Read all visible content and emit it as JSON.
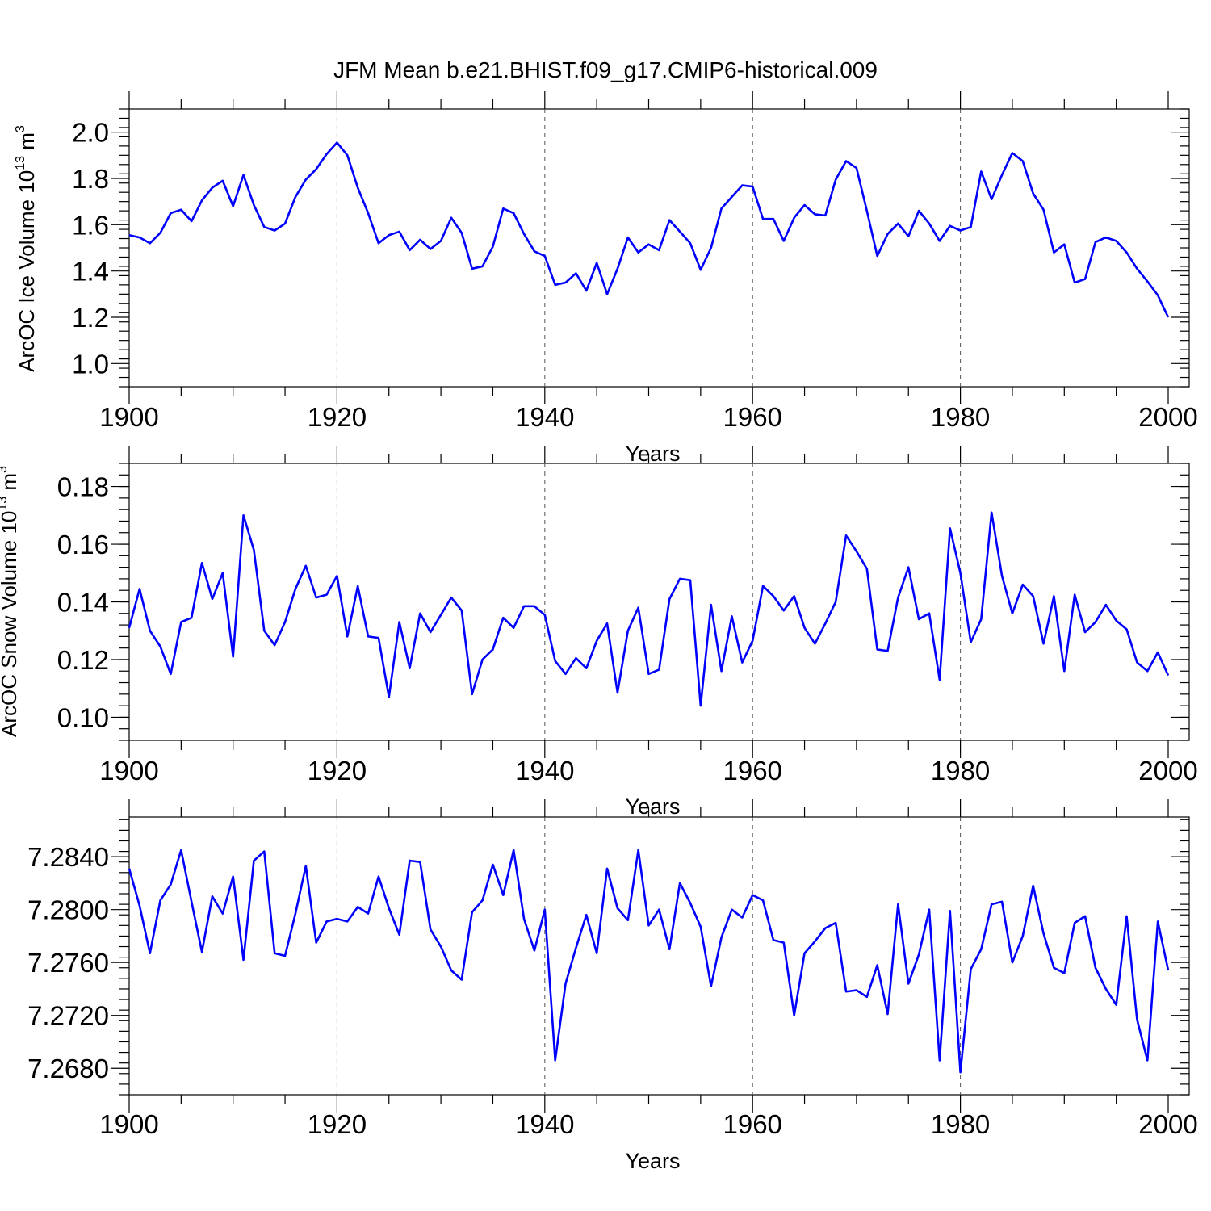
{
  "title": "JFM Mean b.e21.BHIST.f09_g17.CMIP6-historical.009",
  "colors": {
    "line": "#0000ff",
    "grid": "#555555",
    "axis": "#000000"
  },
  "chart_data": [
    {
      "type": "line",
      "name": "ice-volume",
      "ylabel_main": "ArcOC Ice Volume 10",
      "ylabel_exp": "13",
      "ylabel_unit": " m",
      "ylabel_unit_exp": "3",
      "xlabel": "Years",
      "xlim": [
        1900,
        2000
      ],
      "ylim": [
        0.9,
        2.1
      ],
      "xticks": [
        1900,
        1920,
        1940,
        1960,
        1980,
        2000
      ],
      "xtick_labels": [
        "1900",
        "1920",
        "1940",
        "1960",
        "1980",
        "2000"
      ],
      "yticks": [
        1.0,
        1.2,
        1.4,
        1.6,
        1.8,
        2.0
      ],
      "ytick_labels": [
        "1.0",
        "1.2",
        "1.4",
        "1.6",
        "1.8",
        "2.0"
      ],
      "yminor_step": 0.04,
      "x_start": 1900,
      "values": [
        1.555,
        1.545,
        1.52,
        1.565,
        1.65,
        1.665,
        1.615,
        1.705,
        1.76,
        1.79,
        1.68,
        1.815,
        1.685,
        1.59,
        1.575,
        1.605,
        1.72,
        1.795,
        1.84,
        1.905,
        1.955,
        1.9,
        1.76,
        1.65,
        1.52,
        1.555,
        1.57,
        1.49,
        1.535,
        1.495,
        1.53,
        1.63,
        1.565,
        1.41,
        1.42,
        1.505,
        1.67,
        1.65,
        1.56,
        1.485,
        1.465,
        1.34,
        1.35,
        1.39,
        1.315,
        1.435,
        1.3,
        1.41,
        1.545,
        1.48,
        1.515,
        1.49,
        1.62,
        1.57,
        1.52,
        1.405,
        1.5,
        1.67,
        1.72,
        1.77,
        1.765,
        1.625,
        1.625,
        1.53,
        1.63,
        1.685,
        1.645,
        1.64,
        1.795,
        1.875,
        1.845,
        1.66,
        1.465,
        1.56,
        1.605,
        1.55,
        1.66,
        1.605,
        1.53,
        1.595,
        1.575,
        1.59,
        1.83,
        1.71,
        1.815,
        1.91,
        1.875,
        1.735,
        1.665,
        1.48,
        1.515,
        1.35,
        1.365,
        1.525,
        1.545,
        1.53,
        1.48,
        1.41,
        1.355,
        1.295,
        1.2
      ]
    },
    {
      "type": "line",
      "name": "snow-volume",
      "ylabel_main": "ArcOC Snow Volume 10",
      "ylabel_exp": "13",
      "ylabel_unit": " m",
      "ylabel_unit_exp": "3",
      "xlabel": "Years",
      "xlim": [
        1900,
        2000
      ],
      "ylim": [
        0.092,
        0.188
      ],
      "xticks": [
        1900,
        1920,
        1940,
        1960,
        1980,
        2000
      ],
      "xtick_labels": [
        "1900",
        "1920",
        "1940",
        "1960",
        "1980",
        "2000"
      ],
      "yticks": [
        0.1,
        0.12,
        0.14,
        0.16,
        0.18
      ],
      "ytick_labels": [
        "0.10",
        "0.12",
        "0.14",
        "0.16",
        "0.18"
      ],
      "yminor_step": 0.004,
      "x_start": 1900,
      "values": [
        0.131,
        0.1445,
        0.13,
        0.1245,
        0.115,
        0.133,
        0.1345,
        0.1535,
        0.141,
        0.15,
        0.121,
        0.17,
        0.158,
        0.13,
        0.125,
        0.133,
        0.1445,
        0.1525,
        0.1415,
        0.1425,
        0.149,
        0.128,
        0.1455,
        0.128,
        0.1275,
        0.107,
        0.133,
        0.117,
        0.136,
        0.1295,
        0.1355,
        0.1415,
        0.137,
        0.108,
        0.12,
        0.1235,
        0.1345,
        0.131,
        0.1385,
        0.1385,
        0.1355,
        0.1195,
        0.115,
        0.1205,
        0.117,
        0.1265,
        0.1325,
        0.1085,
        0.13,
        0.138,
        0.115,
        0.1165,
        0.141,
        0.148,
        0.1475,
        0.104,
        0.139,
        0.116,
        0.135,
        0.119,
        0.1265,
        0.1455,
        0.142,
        0.137,
        0.142,
        0.131,
        0.1255,
        0.1325,
        0.14,
        0.163,
        0.1575,
        0.1515,
        0.1235,
        0.123,
        0.1415,
        0.152,
        0.134,
        0.136,
        0.113,
        0.1655,
        0.15,
        0.126,
        0.134,
        0.171,
        0.149,
        0.136,
        0.146,
        0.142,
        0.1255,
        0.142,
        0.116,
        0.1425,
        0.1295,
        0.133,
        0.139,
        0.1335,
        0.1305,
        0.119,
        0.116,
        0.1225,
        0.1145
      ]
    },
    {
      "type": "line",
      "name": "third-series",
      "ylabel_main": "",
      "ylabel_exp": "",
      "ylabel_unit": "",
      "ylabel_unit_exp": "",
      "xlabel": "Years",
      "xlim": [
        1900,
        2000
      ],
      "ylim": [
        7.266,
        7.287
      ],
      "xticks": [
        1900,
        1920,
        1940,
        1960,
        1980,
        2000
      ],
      "xtick_labels": [
        "1900",
        "1920",
        "1940",
        "1960",
        "1980",
        "2000"
      ],
      "yticks": [
        7.268,
        7.272,
        7.276,
        7.28,
        7.284
      ],
      "ytick_labels": [
        "7.2680",
        "7.2720",
        "7.2760",
        "7.2800",
        "7.2840"
      ],
      "yminor_step": 0.0008,
      "x_start": 1900,
      "values": [
        7.2831,
        7.2803,
        7.2767,
        7.2807,
        7.2819,
        7.2845,
        7.2806,
        7.2768,
        7.281,
        7.2797,
        7.2825,
        7.2762,
        7.2837,
        7.2844,
        7.2767,
        7.2765,
        7.2797,
        7.2833,
        7.2775,
        7.2791,
        7.2793,
        7.2791,
        7.2802,
        7.2797,
        7.2825,
        7.2801,
        7.2781,
        7.2837,
        7.2836,
        7.2785,
        7.2772,
        7.2754,
        7.2747,
        7.2798,
        7.2807,
        7.2834,
        7.2811,
        7.2845,
        7.2793,
        7.2769,
        7.28,
        7.2686,
        7.2744,
        7.2771,
        7.2796,
        7.2767,
        7.2831,
        7.2801,
        7.2792,
        7.2845,
        7.2788,
        7.28,
        7.277,
        7.282,
        7.2805,
        7.2787,
        7.2742,
        7.2779,
        7.28,
        7.2794,
        7.2811,
        7.2807,
        7.2777,
        7.2775,
        7.272,
        7.2767,
        7.2776,
        7.2786,
        7.279,
        7.2738,
        7.2739,
        7.2734,
        7.2758,
        7.2721,
        7.2804,
        7.2744,
        7.2766,
        7.28,
        7.2686,
        7.2799,
        7.2677,
        7.2755,
        7.277,
        7.2804,
        7.2806,
        7.276,
        7.278,
        7.2818,
        7.2782,
        7.2756,
        7.2752,
        7.279,
        7.2795,
        7.2756,
        7.274,
        7.2728,
        7.2795,
        7.2717,
        7.2686,
        7.2791,
        7.2754
      ]
    }
  ]
}
